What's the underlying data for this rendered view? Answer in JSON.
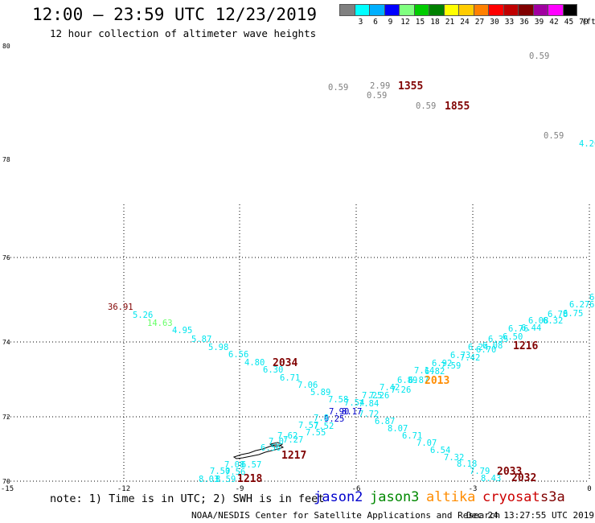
{
  "header": {
    "title": "12:00 — 23:59 UTC 12/23/2019",
    "subtitle": "12 hour collection of altimeter wave heights"
  },
  "legend": {
    "unit_label": "(ft)",
    "bins": [
      {
        "label": "3",
        "color": "#808080"
      },
      {
        "label": "6",
        "color": "#00ffff"
      },
      {
        "label": "9",
        "color": "#00b0ff"
      },
      {
        "label": "12",
        "color": "#0000ff"
      },
      {
        "label": "15",
        "color": "#80ff80"
      },
      {
        "label": "18",
        "color": "#00cc00"
      },
      {
        "label": "21",
        "color": "#008000"
      },
      {
        "label": "24",
        "color": "#ffff00"
      },
      {
        "label": "27",
        "color": "#ffcc00"
      },
      {
        "label": "30",
        "color": "#ff8000"
      },
      {
        "label": "33",
        "color": "#ff0000"
      },
      {
        "label": "36",
        "color": "#c00000"
      },
      {
        "label": "39",
        "color": "#800000"
      },
      {
        "label": "42",
        "color": "#a000a0"
      },
      {
        "label": "45",
        "color": "#ff00ff"
      },
      {
        "label": "70",
        "color": "#000000"
      }
    ]
  },
  "footer": {
    "note": "note: 1) Time is in UTC; 2) SWH is in feet",
    "satellites": [
      {
        "name": "jason2",
        "color": "#0000cc"
      },
      {
        "name": "jason3",
        "color": "#008800"
      },
      {
        "name": "altika",
        "color": "#ff8c00"
      },
      {
        "name": "cryosat",
        "color": "#cc0000"
      },
      {
        "name": "s3a",
        "color": "#800000"
      }
    ],
    "credit": "NOAA/NESDIS Center for Satellite Applications and Research",
    "generated": "Dec 24 13:27:55 UTC 2019"
  },
  "map": {
    "lat_ticks": [
      "80",
      "78",
      "76",
      "74",
      "72",
      "70"
    ],
    "lon_ticks": [
      "-15",
      "-12",
      "-9",
      "-6",
      "-3",
      "0"
    ],
    "coastline_color": "#000000"
  },
  "observations": [
    {
      "text": "0.59",
      "color": "#808080"
    },
    {
      "text": "0.59",
      "color": "#808080"
    },
    {
      "text": "2.99",
      "color": "#808080"
    },
    {
      "text": "0.59",
      "color": "#808080"
    },
    {
      "text": "0.59",
      "color": "#808080"
    },
    {
      "text": "0.59",
      "color": "#808080"
    },
    {
      "text": "4.20",
      "color": "#00e5ee"
    },
    {
      "text": "36.91",
      "color": "#800000"
    },
    {
      "text": "5.26",
      "color": "#00e5ee"
    },
    {
      "text": "14.63",
      "color": "#66ff66"
    },
    {
      "text": "4.95",
      "color": "#00e5ee"
    },
    {
      "text": "5.87",
      "color": "#00e5ee"
    },
    {
      "text": "5.98",
      "color": "#00e5ee"
    },
    {
      "text": "6.56",
      "color": "#00e5ee"
    },
    {
      "text": "4.80",
      "color": "#00e5ee"
    },
    {
      "text": "6.30",
      "color": "#00e5ee"
    },
    {
      "text": "6.71",
      "color": "#00e5ee"
    },
    {
      "text": "7.06",
      "color": "#00e5ee"
    },
    {
      "text": "5.89",
      "color": "#00e5ee"
    },
    {
      "text": "7.58",
      "color": "#00e5ee"
    },
    {
      "text": "7.54",
      "color": "#00e5ee"
    },
    {
      "text": "7.84",
      "color": "#00e5ee"
    },
    {
      "text": "7.72",
      "color": "#00e5ee"
    },
    {
      "text": "6.87",
      "color": "#00e5ee"
    },
    {
      "text": "8.07",
      "color": "#00e5ee"
    },
    {
      "text": "6.71",
      "color": "#00e5ee"
    },
    {
      "text": "7.07",
      "color": "#00e5ee"
    },
    {
      "text": "6.54",
      "color": "#00e5ee"
    },
    {
      "text": "7.32",
      "color": "#00e5ee"
    },
    {
      "text": "8.18",
      "color": "#00e5ee"
    },
    {
      "text": "7.79",
      "color": "#00e5ee"
    },
    {
      "text": "8.43",
      "color": "#00e5ee"
    },
    {
      "text": "7.90",
      "color": "#0000cc"
    },
    {
      "text": "9.25",
      "color": "#0000cc"
    },
    {
      "text": "8.17",
      "color": "#0000cc"
    },
    {
      "text": "7.8",
      "color": "#00e5ee"
    },
    {
      "text": "7.52",
      "color": "#00e5ee"
    },
    {
      "text": "7.57",
      "color": "#00e5ee"
    },
    {
      "text": "7.55",
      "color": "#00e5ee"
    },
    {
      "text": "7.27",
      "color": "#00e5ee"
    },
    {
      "text": "7.0",
      "color": "#00e5ee"
    },
    {
      "text": "7.62",
      "color": "#00e5ee"
    },
    {
      "text": "6.56",
      "color": "#00e5ee"
    },
    {
      "text": "7.08",
      "color": "#00e5ee"
    },
    {
      "text": "6.57",
      "color": "#00e5ee"
    },
    {
      "text": "7.50",
      "color": "#00e5ee"
    },
    {
      "text": "7.56",
      "color": "#00e5ee"
    },
    {
      "text": "8.03",
      "color": "#00e5ee"
    },
    {
      "text": "8.59",
      "color": "#00e5ee"
    },
    {
      "text": "7.25",
      "color": "#00e5ee"
    },
    {
      "text": "7.26",
      "color": "#00e5ee"
    },
    {
      "text": "7.42",
      "color": "#00e5ee"
    },
    {
      "text": "7.26",
      "color": "#00e5ee"
    },
    {
      "text": "6.89",
      "color": "#00e5ee"
    },
    {
      "text": "6.87",
      "color": "#00e5ee"
    },
    {
      "text": "7.14",
      "color": "#00e5ee"
    },
    {
      "text": "6.82",
      "color": "#00e5ee"
    },
    {
      "text": "6.92",
      "color": "#00e5ee"
    },
    {
      "text": "7.59",
      "color": "#00e5ee"
    },
    {
      "text": "6.73",
      "color": "#00e5ee"
    },
    {
      "text": "7.42",
      "color": "#00e5ee"
    },
    {
      "text": "6.24",
      "color": "#00e5ee"
    },
    {
      "text": "6.70",
      "color": "#00e5ee"
    },
    {
      "text": "6.08",
      "color": "#00e5ee"
    },
    {
      "text": "6.35",
      "color": "#00e5ee"
    },
    {
      "text": "6.50",
      "color": "#00e5ee"
    },
    {
      "text": "6.76",
      "color": "#00e5ee"
    },
    {
      "text": "6.44",
      "color": "#00e5ee"
    },
    {
      "text": "6.08",
      "color": "#00e5ee"
    },
    {
      "text": "6.32",
      "color": "#00e5ee"
    },
    {
      "text": "6.78",
      "color": "#00e5ee"
    },
    {
      "text": "6.75",
      "color": "#00e5ee"
    },
    {
      "text": "6.27",
      "color": "#00e5ee"
    },
    {
      "text": "6",
      "color": "#00e5ee"
    },
    {
      "text": "6",
      "color": "#00e5ee"
    }
  ],
  "time_labels": [
    {
      "text": "1355",
      "color": "#800000"
    },
    {
      "text": "1855",
      "color": "#800000"
    },
    {
      "text": "2034",
      "color": "#800000"
    },
    {
      "text": "2013",
      "color": "#ff8c00"
    },
    {
      "text": "1216",
      "color": "#800000"
    },
    {
      "text": "1217",
      "color": "#800000"
    },
    {
      "text": "1218",
      "color": "#800000"
    },
    {
      "text": "2033",
      "color": "#800000"
    },
    {
      "text": "2032",
      "color": "#800000"
    }
  ]
}
